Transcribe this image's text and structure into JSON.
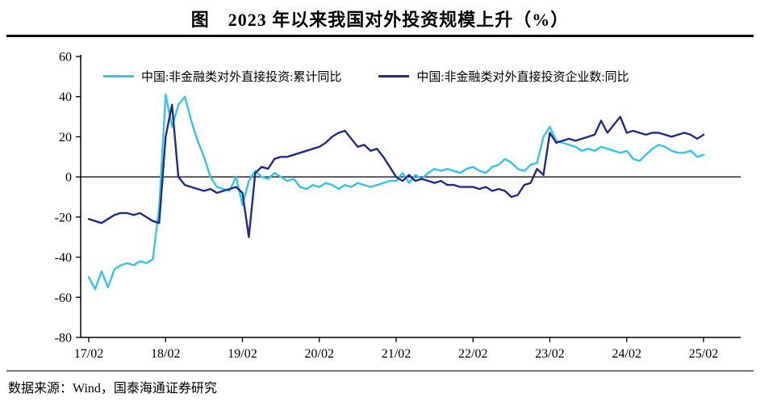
{
  "title": "图　2023 年以来我国对外投资规模上升（%）",
  "source": "数据来源：Wind，国泰海通证券研究",
  "legend": [
    {
      "label": "中国:非金融类对外直接投资:累计同比",
      "color": "#35C5EF"
    },
    {
      "label": "中国:非金融类对外直接投资企业数:同比",
      "color": "#1F2C8C"
    }
  ],
  "chart_data": {
    "type": "line",
    "title": "图　2023 年以来我国对外投资规模上升（%）",
    "ylim": [
      -80,
      60
    ],
    "y_ticks": [
      60,
      40,
      20,
      0,
      -20,
      -40,
      -60,
      -80
    ],
    "x_tick_labels": [
      "17/02",
      "18/02",
      "19/02",
      "20/02",
      "21/02",
      "22/02",
      "23/02",
      "24/02",
      "25/02"
    ],
    "x_tick_indices": [
      0,
      12,
      24,
      36,
      48,
      60,
      72,
      84,
      96
    ],
    "grid": false,
    "legend_position": "top",
    "axis_color": "#000000",
    "series": [
      {
        "name": "中国:非金融类对外直接投资:累计同比",
        "color": "#35C5EF",
        "values": [
          -50,
          -56,
          -47,
          -55,
          -46,
          -44,
          -43,
          -44,
          -42,
          -43,
          -41,
          -15,
          41,
          25,
          36,
          40,
          28,
          18,
          10,
          0,
          -5,
          -6,
          -7,
          0,
          -14,
          -2,
          3,
          0,
          -1,
          2,
          0,
          -2,
          -1,
          -5,
          -6,
          -4,
          -5,
          -3,
          -4,
          -6,
          -4,
          -5,
          -3,
          -4,
          -5,
          -4,
          -3,
          -2,
          -2,
          2,
          -3,
          1,
          -1,
          2,
          4,
          3,
          4,
          3,
          2,
          4,
          5,
          3,
          2,
          5,
          6,
          9,
          7,
          4,
          3,
          6,
          7,
          20,
          25,
          18,
          17,
          16,
          15,
          13,
          14,
          13,
          15,
          14,
          13,
          12,
          13,
          9,
          8,
          11,
          14,
          16,
          15,
          13,
          12,
          12,
          13,
          10,
          11
        ]
      },
      {
        "name": "中国:非金融类对外直接投资企业数:同比",
        "color": "#1F2C8C",
        "values": [
          -21,
          -22,
          -23,
          -21,
          -19,
          -18,
          -18,
          -19,
          -18,
          -20,
          -22,
          -23,
          20,
          36,
          0,
          -4,
          -5,
          -6,
          -7,
          -6,
          -8,
          -7,
          -6,
          -5,
          -8,
          -30,
          2,
          5,
          4,
          9,
          10,
          10,
          11,
          12,
          13,
          14,
          15,
          17,
          20,
          22,
          23,
          19,
          15,
          16,
          13,
          14,
          10,
          5,
          0,
          -2,
          1,
          -2,
          -1,
          -2,
          -3,
          -2,
          -4,
          -4,
          -5,
          -5,
          -5,
          -6,
          -5,
          -7,
          -6,
          -7,
          -10,
          -9,
          -4,
          -3,
          4,
          1,
          22,
          17,
          18,
          19,
          18,
          19,
          20,
          21,
          28,
          22,
          26,
          30,
          22,
          23,
          22,
          21,
          22,
          22,
          21,
          20,
          21,
          22,
          21,
          19,
          21
        ]
      }
    ]
  }
}
